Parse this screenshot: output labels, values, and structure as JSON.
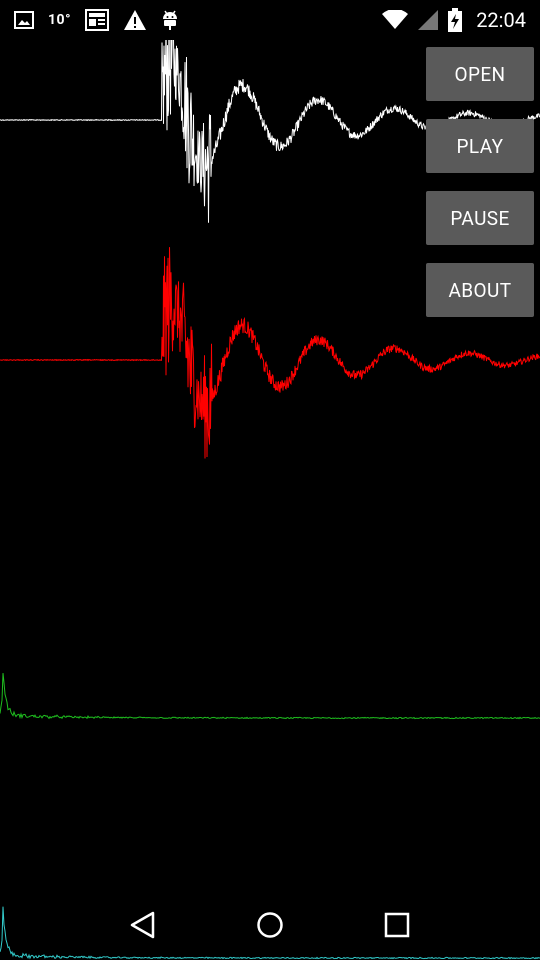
{
  "status_bar": {
    "temperature": "10°",
    "time": "22:04",
    "icons": [
      "image-icon",
      "news-icon",
      "warning-icon",
      "android-debug-icon",
      "wifi-icon",
      "cell-signal-icon",
      "battery-charging-icon"
    ]
  },
  "controls": {
    "open_label": "OPEN",
    "play_label": "PLAY",
    "pause_label": "PAUSE",
    "about_label": "ABOUT"
  },
  "traces": {
    "colors": {
      "background": "#000000",
      "waveform_original": "#ffffff",
      "waveform_processed": "#ff0000",
      "spectrum_1": "#1fbf1f",
      "spectrum_2": "#33cccc",
      "button": "#5a5a5a"
    }
  },
  "nav_bar": {
    "icons": [
      "back-icon",
      "home-icon",
      "recents-icon"
    ]
  }
}
